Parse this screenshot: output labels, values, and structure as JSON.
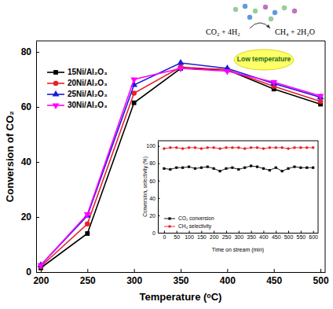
{
  "chart_data": [
    {
      "type": "line",
      "x": [
        200,
        250,
        300,
        350,
        400,
        450,
        500
      ],
      "xlim": [
        195,
        505
      ],
      "xticks": [
        200,
        250,
        300,
        350,
        400,
        450,
        500
      ],
      "ylim": [
        0,
        84
      ],
      "yticks": [
        0,
        20,
        40,
        60,
        80
      ],
      "xlabel": "Temperature (ᵒC)",
      "ylabel": "Conversion of CO₂",
      "legend": "upper left",
      "annotations": [
        "CO₂ + 4H₂",
        "CH₄ + 2H₂O",
        "Low temperature"
      ],
      "series": [
        {
          "name": "15Ni/Al₂O₃",
          "color": "#000000",
          "marker": "square",
          "values": [
            1.5,
            14,
            61.5,
            74,
            73.5,
            66.5,
            61
          ]
        },
        {
          "name": "20Ni/Al₂O₃",
          "color": "#e8202a",
          "marker": "circle",
          "values": [
            2,
            17.5,
            65,
            74.5,
            73.5,
            67.5,
            62
          ]
        },
        {
          "name": "25Ni/Al₂O₃",
          "color": "#1a1adb",
          "marker": "triangle-up",
          "values": [
            2.5,
            20.5,
            68,
            76,
            74,
            68.5,
            63.5
          ]
        },
        {
          "name": "30Ni/Al₂O₃",
          "color": "#ff00ff",
          "marker": "triangle-down",
          "values": [
            2.5,
            21,
            70,
            74,
            73,
            69,
            64
          ]
        }
      ]
    },
    {
      "type": "line",
      "x": [
        0,
        25,
        50,
        75,
        100,
        125,
        150,
        175,
        200,
        225,
        250,
        275,
        300,
        325,
        350,
        375,
        400,
        425,
        450,
        475,
        500,
        525,
        550,
        575,
        600
      ],
      "xlim": [
        -25,
        620
      ],
      "xticks": [
        0,
        50,
        100,
        150,
        200,
        250,
        300,
        350,
        400,
        450,
        500,
        550,
        600
      ],
      "ylim": [
        0,
        106
      ],
      "yticks": [
        0,
        20,
        40,
        60,
        80,
        100
      ],
      "xlabel": "Time on stream (min)",
      "ylabel": "Conversion, selectivity (%)",
      "legend": "lower left",
      "series": [
        {
          "name": "CO₂ conversion",
          "color": "#000000",
          "marker": "square",
          "values": [
            74,
            73,
            75,
            75,
            76,
            74,
            75,
            76,
            74,
            71,
            74,
            75,
            73,
            75,
            77,
            76,
            74,
            72,
            75,
            71,
            74,
            76,
            75,
            75,
            75
          ]
        },
        {
          "name": "CH₄ selectivity",
          "color": "#e8202a",
          "marker": "circle",
          "values": [
            97,
            98,
            98,
            97,
            98,
            98,
            97,
            98,
            98,
            97,
            98,
            98,
            98,
            97,
            98,
            98,
            97,
            98,
            98,
            98,
            97,
            98,
            98,
            98,
            98
          ]
        }
      ]
    }
  ]
}
